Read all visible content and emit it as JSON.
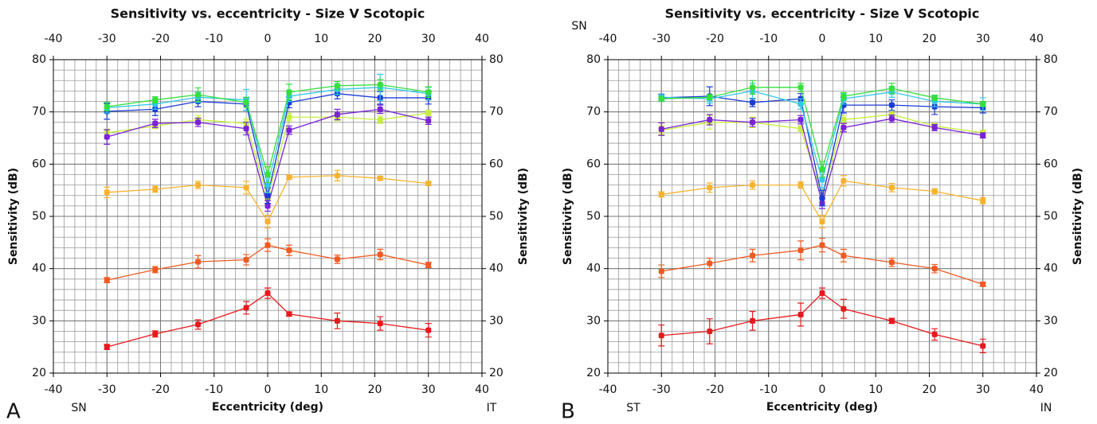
{
  "chart_data": [
    {
      "type": "line",
      "title": "Sensitivity vs. eccentricity - Size V Scotopic",
      "xlabel": "Eccentricity (deg)",
      "ylabel": "Sensitivity (dB)",
      "panel_label": "A",
      "corner_labels": {
        "bottom_left": "SN",
        "bottom_right": "IT"
      },
      "x": [
        -30,
        -21,
        -13,
        -4,
        0,
        4,
        13,
        21,
        30
      ],
      "xlim": [
        -40,
        40
      ],
      "xticks": [
        -40,
        -30,
        -20,
        -10,
        0,
        10,
        20,
        30,
        40
      ],
      "ylim": [
        20,
        80
      ],
      "yticks": [
        20,
        30,
        40,
        50,
        60,
        70,
        80
      ],
      "grid": true,
      "minor_grid_step": 2,
      "series": [
        {
          "color": "#e8191c",
          "values": [
            25,
            27.5,
            29.3,
            32.5,
            35.3,
            31.3,
            30,
            29.5,
            28.2
          ],
          "errors": [
            0.5,
            0.6,
            0.9,
            1.2,
            1,
            0.4,
            1.5,
            1.3,
            1.3
          ]
        },
        {
          "color": "#f05a22",
          "values": [
            37.8,
            39.8,
            41.3,
            41.7,
            44.5,
            43.5,
            41.8,
            42.7,
            40.7
          ],
          "errors": [
            0.5,
            0.6,
            1.2,
            1,
            1.2,
            1,
            0.8,
            1,
            0.5
          ]
        },
        {
          "color": "#f8b32d",
          "values": [
            54.6,
            55.2,
            56,
            55.5,
            49,
            57.5,
            57.8,
            57.3,
            56.3
          ],
          "errors": [
            1,
            0.6,
            0.7,
            1.2,
            1.2,
            0.4,
            1,
            0.4,
            0.4
          ]
        },
        {
          "color": "#c6ef3a",
          "values": [
            66,
            67.3,
            68.5,
            67.8,
            53.5,
            69,
            69,
            68.5,
            69.8
          ],
          "errors": [
            0.7,
            0.5,
            0.8,
            0.8,
            1.2,
            0.7,
            0.7,
            0.7,
            0.5
          ]
        },
        {
          "color": "#7a22d8",
          "values": [
            65.2,
            67.8,
            68,
            66.8,
            52,
            66.5,
            69.5,
            70.5,
            68.3
          ],
          "errors": [
            1.4,
            0.8,
            0.8,
            1.2,
            1,
            0.8,
            1,
            0.8,
            0.7
          ]
        },
        {
          "color": "#1b3bd6",
          "values": [
            70.1,
            70.5,
            72,
            71.5,
            54,
            71.8,
            73.5,
            72.7,
            72.7
          ],
          "errors": [
            1.5,
            1.2,
            1,
            1.2,
            1.5,
            1,
            1,
            1.2,
            1.2
          ]
        },
        {
          "color": "#30c8e8",
          "values": [
            70.8,
            71.5,
            72.8,
            72.3,
            56,
            73,
            74.3,
            74.7,
            73.5
          ],
          "errors": [
            1,
            1,
            1,
            2,
            1.5,
            1,
            1,
            2.5,
            1.2
          ]
        },
        {
          "color": "#34e03c",
          "values": [
            71,
            72.3,
            73.3,
            71.8,
            58,
            73.8,
            75,
            75.2,
            73.8
          ],
          "errors": [
            0.8,
            0.6,
            1.3,
            1,
            1.5,
            1.5,
            0.8,
            1,
            1
          ]
        }
      ]
    },
    {
      "type": "line",
      "title": "Sensitivity vs. eccentricity - Size V Scotopic",
      "xlabel": "Eccentricity (deg)",
      "ylabel": "Sensitivity (dB)",
      "panel_label": "B",
      "corner_labels": {
        "top_left": "SN",
        "bottom_left": "ST",
        "bottom_right": "IN"
      },
      "x": [
        -30,
        -21,
        -13,
        -4,
        0,
        4,
        13,
        21,
        30
      ],
      "xlim": [
        -40,
        40
      ],
      "xticks": [
        -40,
        -30,
        -20,
        -10,
        0,
        10,
        20,
        30,
        40
      ],
      "ylim": [
        20,
        80
      ],
      "yticks": [
        20,
        30,
        40,
        50,
        60,
        70,
        80
      ],
      "grid": true,
      "minor_grid_step": 2,
      "series": [
        {
          "color": "#e8191c",
          "values": [
            27.2,
            28,
            30,
            31.2,
            35.3,
            32.3,
            30,
            27.4,
            25.2
          ],
          "errors": [
            2,
            2.4,
            1.8,
            2.2,
            1,
            1.8,
            0.5,
            1.1,
            1.3
          ]
        },
        {
          "color": "#f05a22",
          "values": [
            39.5,
            41,
            42.5,
            43.5,
            44.5,
            42.5,
            41.2,
            40,
            37
          ],
          "errors": [
            1.2,
            1,
            1.2,
            1.8,
            1.3,
            1.2,
            0.8,
            0.8,
            0.4
          ]
        },
        {
          "color": "#f8b32d",
          "values": [
            54.2,
            55.5,
            56,
            56,
            49,
            56.8,
            55.5,
            54.8,
            53
          ],
          "errors": [
            0.5,
            0.9,
            0.8,
            0.6,
            1.2,
            1,
            0.8,
            0.5,
            0.6
          ]
        },
        {
          "color": "#c6ef3a",
          "values": [
            66.5,
            68,
            68,
            66.8,
            54,
            68.5,
            69.5,
            67.3,
            66
          ],
          "errors": [
            0.8,
            1.3,
            1,
            0.5,
            1.2,
            0.8,
            0.8,
            0.5,
            0.5
          ]
        },
        {
          "color": "#7a22d8",
          "values": [
            66.7,
            68.5,
            68,
            68.5,
            52.5,
            67,
            68.7,
            67,
            65.5
          ],
          "errors": [
            1.2,
            1,
            0.8,
            0.8,
            1,
            0.8,
            0.7,
            0.6,
            0.5
          ]
        },
        {
          "color": "#1b3bd6",
          "values": [
            72.7,
            73,
            71.8,
            72.5,
            53.5,
            71.3,
            71.3,
            71,
            70.8
          ],
          "errors": [
            0.7,
            1.8,
            0.8,
            1,
            1.5,
            1.5,
            1,
            1.5,
            1
          ]
        },
        {
          "color": "#30c8e8",
          "values": [
            72.8,
            72.5,
            74,
            71.5,
            57,
            72.5,
            73.8,
            72,
            71.5
          ],
          "errors": [
            0.5,
            0.8,
            1.5,
            1,
            1.5,
            1,
            1,
            1,
            1.2
          ]
        },
        {
          "color": "#34e03c",
          "values": [
            72.5,
            72.8,
            74.7,
            74.7,
            59,
            73,
            74.5,
            72.7,
            71.5
          ],
          "errors": [
            0.5,
            0.5,
            1.3,
            0.8,
            1.5,
            0.7,
            1,
            0.5,
            0.5
          ]
        }
      ]
    }
  ]
}
